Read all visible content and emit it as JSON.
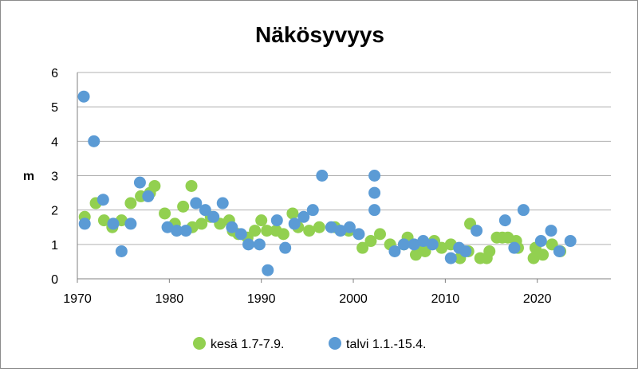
{
  "chart_data": {
    "type": "scatter",
    "title": "Näkösyvyys",
    "ylabel": "m",
    "xlabel": "",
    "xlim": [
      1970,
      2028
    ],
    "ylim": [
      0,
      6
    ],
    "x_ticks": [
      "1970",
      "1980",
      "1990",
      "2000",
      "2010",
      "2020"
    ],
    "y_ticks": [
      "0",
      "1",
      "2",
      "3",
      "4",
      "5",
      "6"
    ],
    "grid": "horizontal",
    "legend_position": "bottom",
    "series": [
      {
        "name": "kesä 1.7-7.9.",
        "color": "#92d050",
        "points": [
          [
            1970.8,
            1.8
          ],
          [
            1972.0,
            2.2
          ],
          [
            1972.9,
            1.7
          ],
          [
            1973.8,
            1.5
          ],
          [
            1974.8,
            1.7
          ],
          [
            1975.8,
            2.2
          ],
          [
            1976.9,
            2.4
          ],
          [
            1977.9,
            2.5
          ],
          [
            1978.4,
            2.7
          ],
          [
            1979.5,
            1.9
          ],
          [
            1980.6,
            1.6
          ],
          [
            1981.5,
            2.1
          ],
          [
            1982.4,
            2.7
          ],
          [
            1982.5,
            1.5
          ],
          [
            1983.5,
            1.6
          ],
          [
            1984.5,
            1.8
          ],
          [
            1985.5,
            1.6
          ],
          [
            1986.5,
            1.7
          ],
          [
            1986.9,
            1.4
          ],
          [
            1987.5,
            1.3
          ],
          [
            1988.5,
            1.2
          ],
          [
            1989.3,
            1.4
          ],
          [
            1990.0,
            1.7
          ],
          [
            1990.6,
            1.4
          ],
          [
            1991.6,
            1.4
          ],
          [
            1992.4,
            1.3
          ],
          [
            1993.4,
            1.9
          ],
          [
            1994.0,
            1.5
          ],
          [
            1995.2,
            1.4
          ],
          [
            1996.3,
            1.5
          ],
          [
            1998.0,
            1.5
          ],
          [
            1999.5,
            1.4
          ],
          [
            2001.0,
            0.9
          ],
          [
            2001.9,
            1.1
          ],
          [
            2002.9,
            1.3
          ],
          [
            2004.0,
            1.0
          ],
          [
            2005.5,
            1.0
          ],
          [
            2005.9,
            1.2
          ],
          [
            2006.8,
            0.7
          ],
          [
            2007.4,
            1.0
          ],
          [
            2007.8,
            0.8
          ],
          [
            2008.8,
            1.1
          ],
          [
            2009.6,
            0.9
          ],
          [
            2010.6,
            1.0
          ],
          [
            2011.6,
            0.6
          ],
          [
            2012.5,
            0.8
          ],
          [
            2012.7,
            1.6
          ],
          [
            2013.8,
            0.6
          ],
          [
            2014.5,
            0.6
          ],
          [
            2014.8,
            0.8
          ],
          [
            2015.6,
            1.2
          ],
          [
            2016.2,
            1.2
          ],
          [
            2016.8,
            1.2
          ],
          [
            2017.7,
            1.1
          ],
          [
            2017.9,
            0.9
          ],
          [
            2019.6,
            0.6
          ],
          [
            2019.8,
            0.9
          ],
          [
            2020.6,
            0.7
          ],
          [
            2021.6,
            1.0
          ],
          [
            2022.5,
            0.8
          ]
        ]
      },
      {
        "name": "talvi 1.1.-15.4.",
        "color": "#5b9bd5",
        "points": [
          [
            1970.7,
            5.3
          ],
          [
            1970.8,
            1.6
          ],
          [
            1971.8,
            4.0
          ],
          [
            1972.8,
            2.3
          ],
          [
            1973.9,
            1.6
          ],
          [
            1974.8,
            0.8
          ],
          [
            1975.8,
            1.6
          ],
          [
            1976.8,
            2.8
          ],
          [
            1977.7,
            2.4
          ],
          [
            1979.8,
            1.5
          ],
          [
            1980.8,
            1.4
          ],
          [
            1981.8,
            1.4
          ],
          [
            1982.9,
            2.2
          ],
          [
            1983.9,
            2.0
          ],
          [
            1984.8,
            1.8
          ],
          [
            1985.8,
            2.2
          ],
          [
            1986.8,
            1.5
          ],
          [
            1987.8,
            1.3
          ],
          [
            1988.6,
            1.0
          ],
          [
            1989.8,
            1.0
          ],
          [
            1990.7,
            0.25
          ],
          [
            1991.7,
            1.7
          ],
          [
            1992.6,
            0.9
          ],
          [
            1993.6,
            1.6
          ],
          [
            1994.6,
            1.8
          ],
          [
            1995.6,
            2.0
          ],
          [
            1996.6,
            3.0
          ],
          [
            1997.6,
            1.5
          ],
          [
            1998.6,
            1.4
          ],
          [
            1999.6,
            1.5
          ],
          [
            2000.6,
            1.3
          ],
          [
            2002.3,
            3.0
          ],
          [
            2002.3,
            2.5
          ],
          [
            2002.3,
            2.0
          ],
          [
            2004.5,
            0.8
          ],
          [
            2005.5,
            1.0
          ],
          [
            2006.6,
            1.0
          ],
          [
            2007.6,
            1.1
          ],
          [
            2008.6,
            1.0
          ],
          [
            2010.6,
            0.6
          ],
          [
            2011.5,
            0.9
          ],
          [
            2012.2,
            0.8
          ],
          [
            2013.4,
            1.4
          ],
          [
            2016.5,
            1.7
          ],
          [
            2017.5,
            0.9
          ],
          [
            2018.5,
            2.0
          ],
          [
            2020.4,
            1.1
          ],
          [
            2021.5,
            1.4
          ],
          [
            2022.4,
            0.8
          ],
          [
            2023.6,
            1.1
          ]
        ]
      }
    ]
  }
}
